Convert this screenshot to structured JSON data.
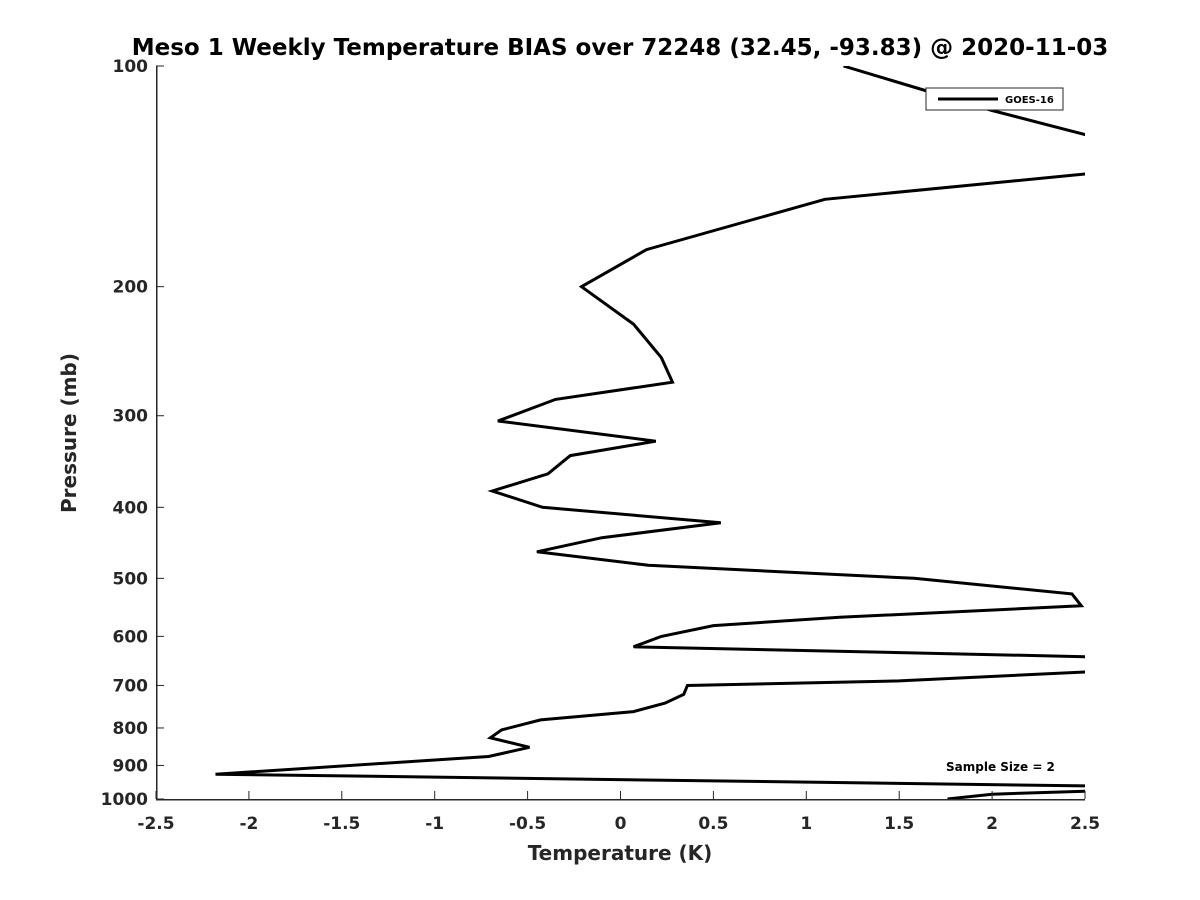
{
  "chart_data": {
    "type": "line",
    "title": "Meso 1 Weekly Temperature BIAS over 72248 (32.45, -93.83) @ 2020-11-03",
    "xlabel": "Temperature (K)",
    "ylabel": "Pressure (mb)",
    "xlim": [
      -2.5,
      2.5
    ],
    "ylim": [
      1000,
      100
    ],
    "yscale": "log",
    "x_ticks": [
      "-2.5",
      "-2",
      "-1.5",
      "-1",
      "-0.5",
      "0",
      "0.5",
      "1",
      "1.5",
      "2",
      "2.5"
    ],
    "y_ticks": [
      "100",
      "200",
      "300",
      "400",
      "500",
      "600",
      "700",
      "800",
      "900",
      "1000"
    ],
    "grid": false,
    "legend_position": "top-right",
    "annotation": "Sample Size = 2",
    "series": [
      {
        "name": "GOES-16",
        "color": "#000000",
        "points": [
          [
            1.2,
            100
          ],
          [
            2.0,
            115
          ],
          [
            2.55,
            125
          ],
          [
            2.55,
            140
          ],
          [
            1.1,
            152
          ],
          [
            0.14,
            178
          ],
          [
            -0.21,
            200
          ],
          [
            0.07,
            225
          ],
          [
            0.22,
            250
          ],
          [
            0.28,
            270
          ],
          [
            -0.35,
            285
          ],
          [
            -0.66,
            305
          ],
          [
            0.19,
            325
          ],
          [
            -0.27,
            340
          ],
          [
            -0.39,
            360
          ],
          [
            -0.69,
            380
          ],
          [
            -0.42,
            400
          ],
          [
            0.54,
            420
          ],
          [
            -0.1,
            440
          ],
          [
            -0.45,
            460
          ],
          [
            0.15,
            480
          ],
          [
            1.58,
            500
          ],
          [
            2.43,
            525
          ],
          [
            2.48,
            545
          ],
          [
            1.18,
            565
          ],
          [
            0.5,
            580
          ],
          [
            0.22,
            600
          ],
          [
            0.07,
            620
          ],
          [
            2.55,
            640
          ],
          [
            2.55,
            670
          ],
          [
            1.5,
            690
          ],
          [
            0.36,
            700
          ],
          [
            0.34,
            720
          ],
          [
            0.24,
            740
          ],
          [
            0.07,
            760
          ],
          [
            -0.43,
            780
          ],
          [
            -0.64,
            805
          ],
          [
            -0.7,
            825
          ],
          [
            -0.49,
            850
          ],
          [
            -0.71,
            875
          ],
          [
            -2.18,
            925
          ],
          [
            2.55,
            960
          ],
          [
            2.55,
            975
          ],
          [
            2.0,
            985
          ],
          [
            1.76,
            1000
          ]
        ]
      }
    ]
  }
}
